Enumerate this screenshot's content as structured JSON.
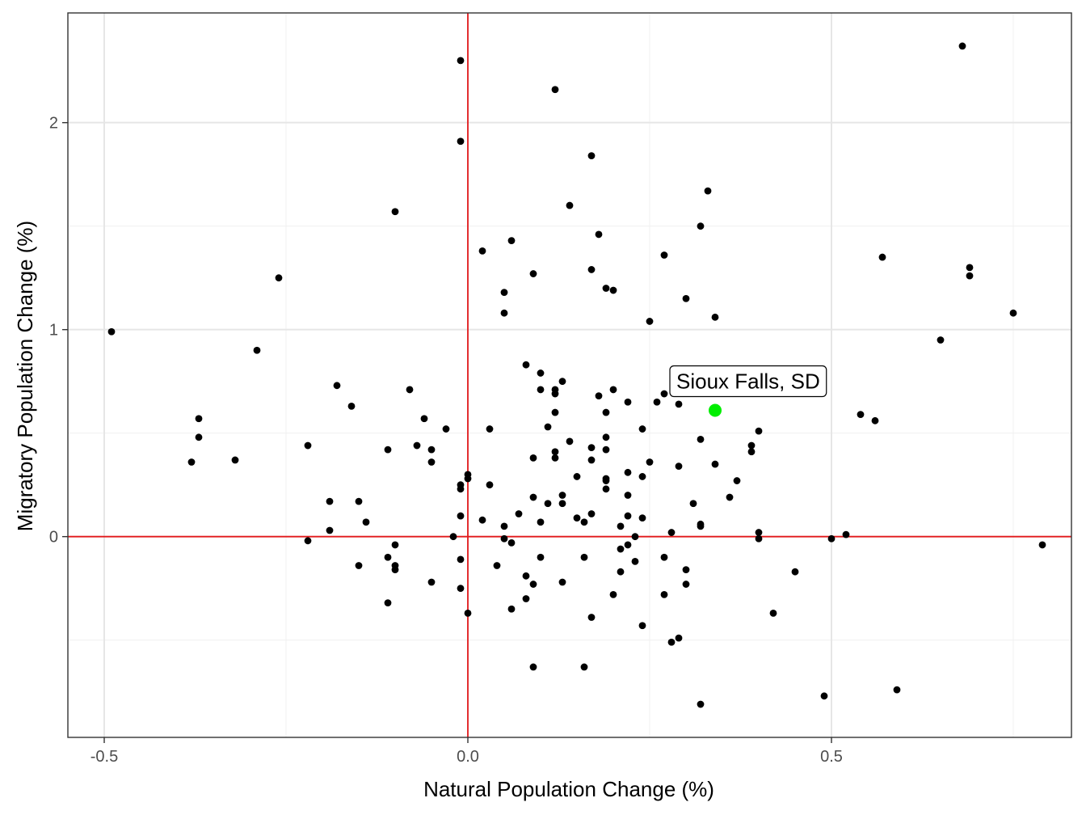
{
  "chart_data": {
    "type": "scatter",
    "title": "",
    "xlabel": "Natural Population Change (%)",
    "ylabel": "Migratory Population Change (%)",
    "xlim": [
      -0.55,
      0.83
    ],
    "ylim": [
      -0.97,
      2.53
    ],
    "x_ticks": [
      -0.5,
      0.0,
      0.5
    ],
    "x_tick_labels": [
      "-0.5",
      "0.0",
      "0.5"
    ],
    "y_ticks": [
      0,
      1,
      2
    ],
    "y_tick_labels": [
      "0",
      "1",
      "2"
    ],
    "x_minor": [
      -0.25,
      0.25,
      0.75
    ],
    "y_minor": [
      -0.5,
      0.5,
      1.5
    ],
    "reference_lines": {
      "x": 0,
      "y": 0,
      "color": "#e31a1c"
    },
    "grid": true,
    "point_color": "#000000",
    "highlight": {
      "label": "Sioux Falls, SD",
      "x": 0.34,
      "y": 0.61,
      "color": "#00ee00"
    },
    "points": [
      [
        -0.49,
        0.99
      ],
      [
        -0.38,
        0.36
      ],
      [
        -0.37,
        0.57
      ],
      [
        -0.37,
        0.48
      ],
      [
        -0.32,
        0.37
      ],
      [
        -0.29,
        0.9
      ],
      [
        -0.26,
        1.25
      ],
      [
        -0.22,
        0.44
      ],
      [
        -0.22,
        -0.02
      ],
      [
        -0.19,
        0.17
      ],
      [
        -0.19,
        0.03
      ],
      [
        -0.18,
        0.73
      ],
      [
        -0.16,
        0.63
      ],
      [
        -0.15,
        0.17
      ],
      [
        -0.15,
        -0.14
      ],
      [
        -0.14,
        0.07
      ],
      [
        -0.11,
        0.42
      ],
      [
        -0.11,
        -0.1
      ],
      [
        -0.11,
        -0.32
      ],
      [
        -0.1,
        1.57
      ],
      [
        -0.1,
        -0.04
      ],
      [
        -0.1,
        -0.14
      ],
      [
        -0.1,
        -0.16
      ],
      [
        -0.08,
        0.71
      ],
      [
        -0.07,
        0.44
      ],
      [
        -0.06,
        0.57
      ],
      [
        -0.05,
        0.42
      ],
      [
        -0.05,
        0.36
      ],
      [
        -0.05,
        -0.22
      ],
      [
        -0.03,
        0.52
      ],
      [
        -0.02,
        0.0
      ],
      [
        -0.01,
        2.3
      ],
      [
        -0.01,
        1.91
      ],
      [
        -0.01,
        0.25
      ],
      [
        -0.01,
        0.23
      ],
      [
        -0.01,
        0.1
      ],
      [
        -0.01,
        -0.11
      ],
      [
        -0.01,
        -0.25
      ],
      [
        0.0,
        0.3
      ],
      [
        0.0,
        0.28
      ],
      [
        0.0,
        -0.37
      ],
      [
        0.02,
        1.38
      ],
      [
        0.02,
        0.08
      ],
      [
        0.03,
        0.52
      ],
      [
        0.03,
        0.25
      ],
      [
        0.04,
        -0.14
      ],
      [
        0.05,
        1.18
      ],
      [
        0.05,
        1.08
      ],
      [
        0.05,
        0.05
      ],
      [
        0.05,
        -0.01
      ],
      [
        0.06,
        1.43
      ],
      [
        0.06,
        -0.03
      ],
      [
        0.06,
        -0.35
      ],
      [
        0.07,
        0.11
      ],
      [
        0.08,
        0.83
      ],
      [
        0.08,
        -0.19
      ],
      [
        0.08,
        -0.3
      ],
      [
        0.09,
        1.27
      ],
      [
        0.09,
        0.38
      ],
      [
        0.09,
        0.19
      ],
      [
        0.09,
        -0.23
      ],
      [
        0.09,
        -0.63
      ],
      [
        0.1,
        0.79
      ],
      [
        0.1,
        0.71
      ],
      [
        0.1,
        0.07
      ],
      [
        0.1,
        -0.1
      ],
      [
        0.11,
        0.53
      ],
      [
        0.11,
        0.16
      ],
      [
        0.12,
        2.16
      ],
      [
        0.12,
        0.71
      ],
      [
        0.12,
        0.69
      ],
      [
        0.12,
        0.6
      ],
      [
        0.12,
        0.41
      ],
      [
        0.12,
        0.38
      ],
      [
        0.13,
        0.75
      ],
      [
        0.13,
        0.2
      ],
      [
        0.13,
        0.16
      ],
      [
        0.13,
        -0.22
      ],
      [
        0.14,
        1.6
      ],
      [
        0.14,
        0.46
      ],
      [
        0.15,
        0.29
      ],
      [
        0.15,
        0.09
      ],
      [
        0.16,
        0.07
      ],
      [
        0.16,
        -0.1
      ],
      [
        0.16,
        -0.63
      ],
      [
        0.17,
        1.84
      ],
      [
        0.17,
        1.29
      ],
      [
        0.17,
        0.43
      ],
      [
        0.17,
        0.37
      ],
      [
        0.17,
        0.11
      ],
      [
        0.17,
        -0.39
      ],
      [
        0.18,
        1.46
      ],
      [
        0.18,
        0.68
      ],
      [
        0.19,
        1.2
      ],
      [
        0.19,
        0.6
      ],
      [
        0.19,
        0.48
      ],
      [
        0.19,
        0.42
      ],
      [
        0.19,
        0.28
      ],
      [
        0.19,
        0.27
      ],
      [
        0.19,
        0.23
      ],
      [
        0.2,
        1.19
      ],
      [
        0.2,
        0.71
      ],
      [
        0.2,
        -0.28
      ],
      [
        0.21,
        0.05
      ],
      [
        0.21,
        -0.06
      ],
      [
        0.21,
        -0.17
      ],
      [
        0.22,
        0.65
      ],
      [
        0.22,
        0.31
      ],
      [
        0.22,
        0.2
      ],
      [
        0.22,
        0.1
      ],
      [
        0.22,
        -0.04
      ],
      [
        0.23,
        0.0
      ],
      [
        0.23,
        -0.12
      ],
      [
        0.24,
        0.52
      ],
      [
        0.24,
        0.29
      ],
      [
        0.24,
        0.09
      ],
      [
        0.24,
        -0.43
      ],
      [
        0.25,
        1.04
      ],
      [
        0.25,
        0.36
      ],
      [
        0.26,
        0.65
      ],
      [
        0.27,
        1.36
      ],
      [
        0.27,
        0.69
      ],
      [
        0.27,
        -0.1
      ],
      [
        0.27,
        -0.28
      ],
      [
        0.28,
        0.02
      ],
      [
        0.28,
        -0.51
      ],
      [
        0.29,
        0.64
      ],
      [
        0.29,
        0.34
      ],
      [
        0.29,
        -0.49
      ],
      [
        0.3,
        1.15
      ],
      [
        0.3,
        -0.16
      ],
      [
        0.3,
        -0.23
      ],
      [
        0.31,
        0.16
      ],
      [
        0.32,
        1.5
      ],
      [
        0.32,
        0.47
      ],
      [
        0.32,
        0.06
      ],
      [
        0.32,
        0.05
      ],
      [
        0.32,
        -0.81
      ],
      [
        0.33,
        1.67
      ],
      [
        0.34,
        1.06
      ],
      [
        0.34,
        0.35
      ],
      [
        0.36,
        0.19
      ],
      [
        0.37,
        0.27
      ],
      [
        0.39,
        0.44
      ],
      [
        0.39,
        0.41
      ],
      [
        0.4,
        0.51
      ],
      [
        0.4,
        0.02
      ],
      [
        0.4,
        -0.01
      ],
      [
        0.42,
        -0.37
      ],
      [
        0.45,
        -0.17
      ],
      [
        0.49,
        -0.77
      ],
      [
        0.5,
        -0.01
      ],
      [
        0.52,
        0.01
      ],
      [
        0.54,
        0.59
      ],
      [
        0.56,
        0.56
      ],
      [
        0.57,
        1.35
      ],
      [
        0.59,
        -0.74
      ],
      [
        0.65,
        0.95
      ],
      [
        0.68,
        2.37
      ],
      [
        0.69,
        1.3
      ],
      [
        0.69,
        1.26
      ],
      [
        0.75,
        1.08
      ],
      [
        0.79,
        -0.04
      ]
    ]
  }
}
